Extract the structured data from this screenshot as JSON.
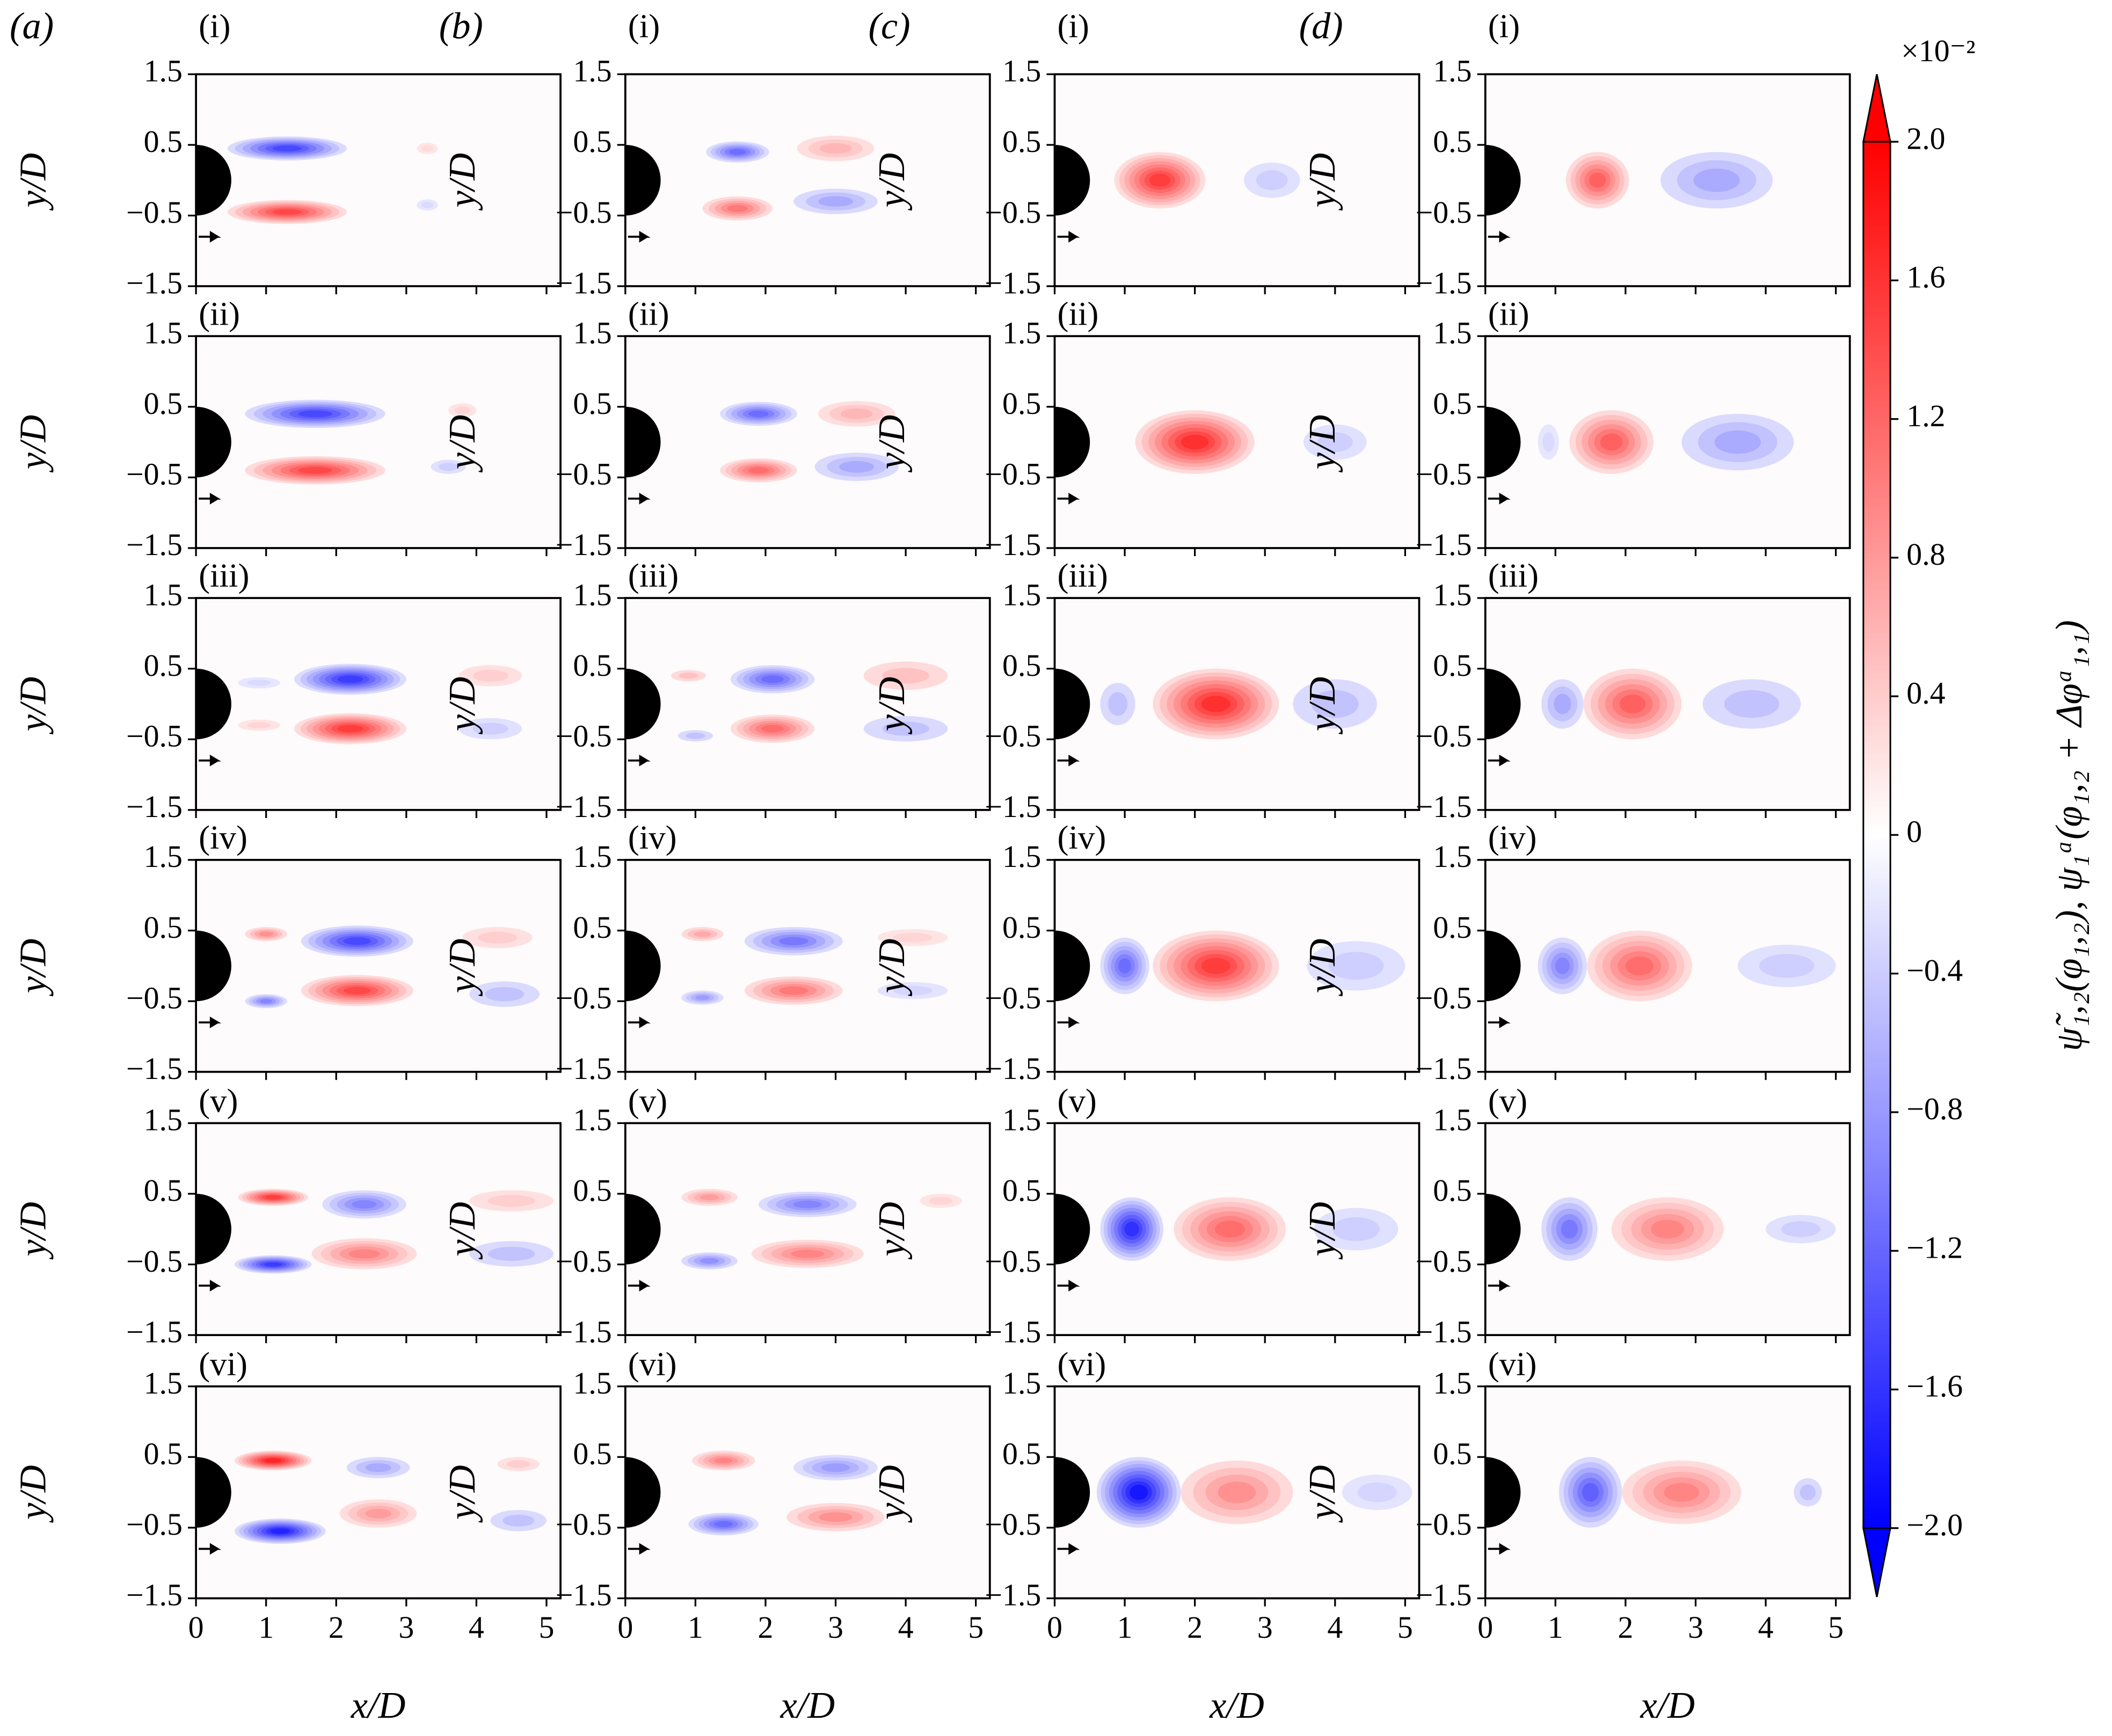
{
  "figure": {
    "columns": [
      {
        "label": "(a)"
      },
      {
        "label": "(b)"
      },
      {
        "label": "(c)"
      },
      {
        "label": "(d)"
      }
    ],
    "rows": [
      "(i)",
      "(ii)",
      "(iii)",
      "(iv)",
      "(v)",
      "(vi)"
    ],
    "x_axis": {
      "label": "x/D",
      "lim": [
        0,
        5.2
      ],
      "ticks": [
        0,
        1,
        2,
        3,
        4,
        5
      ]
    },
    "y_axis": {
      "label": "y/D",
      "lim": [
        -1.5,
        1.5
      ],
      "ticks": [
        {
          "value": 1.5,
          "label": "1.5"
        },
        {
          "value": 0.5,
          "label": "0.5"
        },
        {
          "value": -0.5,
          "label": "−0.5"
        },
        {
          "value": -1.5,
          "label": "−1.5"
        }
      ]
    },
    "colorbar": {
      "label": "ψ̃₁,₂(φ₁,₂), ψ₁ᵃ(φ₁,₂ + Δφᵃ₁,₁)",
      "multiplier": "×10⁻²",
      "lim": [
        -2.0,
        2.0
      ],
      "colors": [
        "#0000ff",
        "#ffffff",
        "#ff0000"
      ],
      "ticks": [
        {
          "value": 2.0,
          "label": "2.0"
        },
        {
          "value": 1.6,
          "label": "1.6"
        },
        {
          "value": 1.2,
          "label": "1.2"
        },
        {
          "value": 0.8,
          "label": "0.8"
        },
        {
          "value": 0.4,
          "label": "0.4"
        },
        0,
        {
          "value": -0.4,
          "label": "−0.4"
        },
        {
          "value": -0.8,
          "label": "−0.8"
        },
        {
          "value": -1.2,
          "label": "−1.2"
        },
        {
          "value": -1.6,
          "label": "−1.6"
        },
        {
          "value": -2.0,
          "label": "−2.0"
        }
      ]
    }
  }
}
